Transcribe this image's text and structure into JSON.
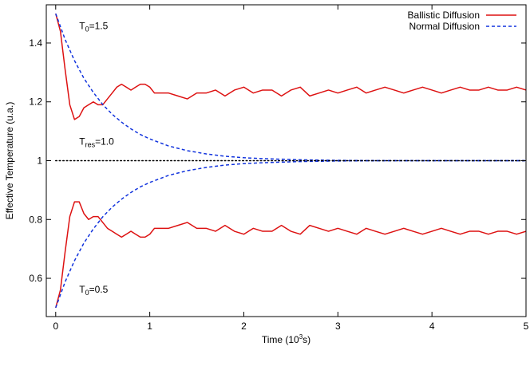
{
  "chart_data": {
    "type": "line",
    "title": "",
    "xlabel": "Time (10",
    "xlabel_sup": "3",
    "xlabel_tail": "s)",
    "ylabel": "Effective Temperature (u.a.)",
    "xlim": [
      -0.1,
      5.0
    ],
    "ylim": [
      0.47,
      1.53
    ],
    "grid": false,
    "legend_position": "top-right",
    "x_ticks": [
      0,
      1,
      2,
      3,
      4,
      5
    ],
    "x_tick_labels": [
      "0",
      "1",
      "2",
      "3",
      "4",
      "5"
    ],
    "y_ticks": [
      0.6,
      0.8,
      1.0,
      1.2,
      1.4
    ],
    "y_tick_labels": [
      "0.6",
      "0.8",
      "1",
      "1.2",
      "1.4"
    ],
    "colors": {
      "ballistic": "#dd1111",
      "normal": "#1133dd",
      "reference": "#000000"
    },
    "series": [
      {
        "name": "Ballistic Diffusion",
        "style": "solid",
        "color": "#dd1111",
        "curves": [
          {
            "x": [
              0.0,
              0.05,
              0.1,
              0.15,
              0.2,
              0.25,
              0.3,
              0.35,
              0.4,
              0.45,
              0.5,
              0.55,
              0.6,
              0.65,
              0.7,
              0.75,
              0.8,
              0.85,
              0.9,
              0.95,
              1.0,
              1.05,
              1.1,
              1.2,
              1.3,
              1.4,
              1.5,
              1.6,
              1.7,
              1.8,
              1.9,
              2.0,
              2.1,
              2.2,
              2.3,
              2.4,
              2.5,
              2.6,
              2.7,
              2.8,
              2.9,
              3.0,
              3.1,
              3.2,
              3.3,
              3.4,
              3.5,
              3.6,
              3.7,
              3.8,
              3.9,
              4.0,
              4.1,
              4.2,
              4.3,
              4.4,
              4.5,
              4.6,
              4.7,
              4.8,
              4.9,
              5.0
            ],
            "y": [
              1.5,
              1.44,
              1.31,
              1.19,
              1.14,
              1.15,
              1.18,
              1.19,
              1.2,
              1.19,
              1.19,
              1.21,
              1.23,
              1.25,
              1.26,
              1.25,
              1.24,
              1.25,
              1.26,
              1.26,
              1.25,
              1.23,
              1.23,
              1.23,
              1.22,
              1.21,
              1.23,
              1.23,
              1.24,
              1.22,
              1.24,
              1.25,
              1.23,
              1.24,
              1.24,
              1.22,
              1.24,
              1.25,
              1.22,
              1.23,
              1.24,
              1.23,
              1.24,
              1.25,
              1.23,
              1.24,
              1.25,
              1.24,
              1.23,
              1.24,
              1.25,
              1.24,
              1.23,
              1.24,
              1.25,
              1.24,
              1.24,
              1.25,
              1.24,
              1.24,
              1.25,
              1.24
            ]
          },
          {
            "x": [
              0.0,
              0.05,
              0.1,
              0.15,
              0.2,
              0.25,
              0.3,
              0.35,
              0.4,
              0.45,
              0.5,
              0.55,
              0.6,
              0.65,
              0.7,
              0.75,
              0.8,
              0.85,
              0.9,
              0.95,
              1.0,
              1.05,
              1.1,
              1.2,
              1.3,
              1.4,
              1.5,
              1.6,
              1.7,
              1.8,
              1.9,
              2.0,
              2.1,
              2.2,
              2.3,
              2.4,
              2.5,
              2.6,
              2.7,
              2.8,
              2.9,
              3.0,
              3.1,
              3.2,
              3.3,
              3.4,
              3.5,
              3.6,
              3.7,
              3.8,
              3.9,
              4.0,
              4.1,
              4.2,
              4.3,
              4.4,
              4.5,
              4.6,
              4.7,
              4.8,
              4.9,
              5.0
            ],
            "y": [
              0.5,
              0.56,
              0.69,
              0.81,
              0.86,
              0.86,
              0.82,
              0.8,
              0.81,
              0.81,
              0.79,
              0.77,
              0.76,
              0.75,
              0.74,
              0.75,
              0.76,
              0.75,
              0.74,
              0.74,
              0.75,
              0.77,
              0.77,
              0.77,
              0.78,
              0.79,
              0.77,
              0.77,
              0.76,
              0.78,
              0.76,
              0.75,
              0.77,
              0.76,
              0.76,
              0.78,
              0.76,
              0.75,
              0.78,
              0.77,
              0.76,
              0.77,
              0.76,
              0.75,
              0.77,
              0.76,
              0.75,
              0.76,
              0.77,
              0.76,
              0.75,
              0.76,
              0.77,
              0.76,
              0.75,
              0.76,
              0.76,
              0.75,
              0.76,
              0.76,
              0.75,
              0.76
            ]
          }
        ]
      },
      {
        "name": "Normal Diffusion",
        "style": "dashed",
        "color": "#1133dd",
        "curves": [
          {
            "x": [
              0.0,
              0.1,
              0.2,
              0.3,
              0.4,
              0.5,
              0.6,
              0.7,
              0.8,
              0.9,
              1.0,
              1.2,
              1.4,
              1.6,
              1.8,
              2.0,
              2.2,
              2.4,
              2.6,
              2.8,
              3.0,
              3.5,
              4.0,
              4.5,
              5.0
            ],
            "y": [
              1.5,
              1.412,
              1.34,
              1.28,
              1.232,
              1.191,
              1.158,
              1.131,
              1.108,
              1.089,
              1.074,
              1.05,
              1.034,
              1.023,
              1.015,
              1.01,
              1.007,
              1.005,
              1.003,
              1.002,
              1.001,
              1.0,
              1.0,
              1.0,
              1.0
            ]
          },
          {
            "x": [
              0.0,
              0.1,
              0.2,
              0.3,
              0.4,
              0.5,
              0.6,
              0.7,
              0.8,
              0.9,
              1.0,
              1.2,
              1.4,
              1.6,
              1.8,
              2.0,
              2.2,
              2.4,
              2.6,
              2.8,
              3.0,
              3.5,
              4.0,
              4.5,
              5.0
            ],
            "y": [
              0.5,
              0.588,
              0.66,
              0.72,
              0.768,
              0.809,
              0.842,
              0.869,
              0.892,
              0.911,
              0.926,
              0.95,
              0.966,
              0.977,
              0.985,
              0.99,
              0.993,
              0.995,
              0.997,
              0.998,
              0.999,
              1.0,
              1.0,
              1.0,
              1.0
            ]
          }
        ]
      },
      {
        "style": "dotted",
        "color": "#000000",
        "curves": [
          {
            "x": [
              0.0,
              5.0
            ],
            "y": [
              1.0,
              1.0
            ]
          }
        ]
      }
    ],
    "annotations": [
      {
        "id": "t0-high",
        "base": "T",
        "sub": "0",
        "tail": "=1.5",
        "x": 0.25,
        "y": 1.447
      },
      {
        "id": "t-res",
        "base": "T",
        "sub": "res",
        "tail": "=1.0",
        "x": 0.25,
        "y": 1.054
      },
      {
        "id": "t0-low",
        "base": "T",
        "sub": "0",
        "tail": "=0.5",
        "x": 0.25,
        "y": 0.552
      }
    ]
  }
}
